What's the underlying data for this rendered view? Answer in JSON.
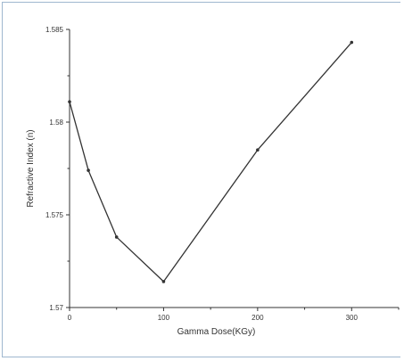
{
  "chart_data": {
    "type": "line",
    "title": "",
    "xlabel": "Gamma Dose(KGy)",
    "ylabel": "Refractive Index (n)",
    "xlim": [
      0,
      350
    ],
    "ylim": [
      1.57,
      1.585
    ],
    "x_ticks": [
      0,
      100,
      200,
      300
    ],
    "x_tick_labels": [
      "0",
      "100",
      "200",
      "300"
    ],
    "y_ticks": [
      1.57,
      1.575,
      1.58,
      1.585
    ],
    "y_tick_labels": [
      "1.57",
      "1.575",
      "1.58",
      "1.585"
    ],
    "grid": false,
    "legend": "none",
    "line_color": "#333333",
    "series": [
      {
        "x": [
          0,
          20,
          50,
          100,
          200,
          300
        ],
        "y": [
          1.5811,
          1.5774,
          1.5738,
          1.5714,
          1.5785,
          1.5843
        ]
      }
    ]
  }
}
